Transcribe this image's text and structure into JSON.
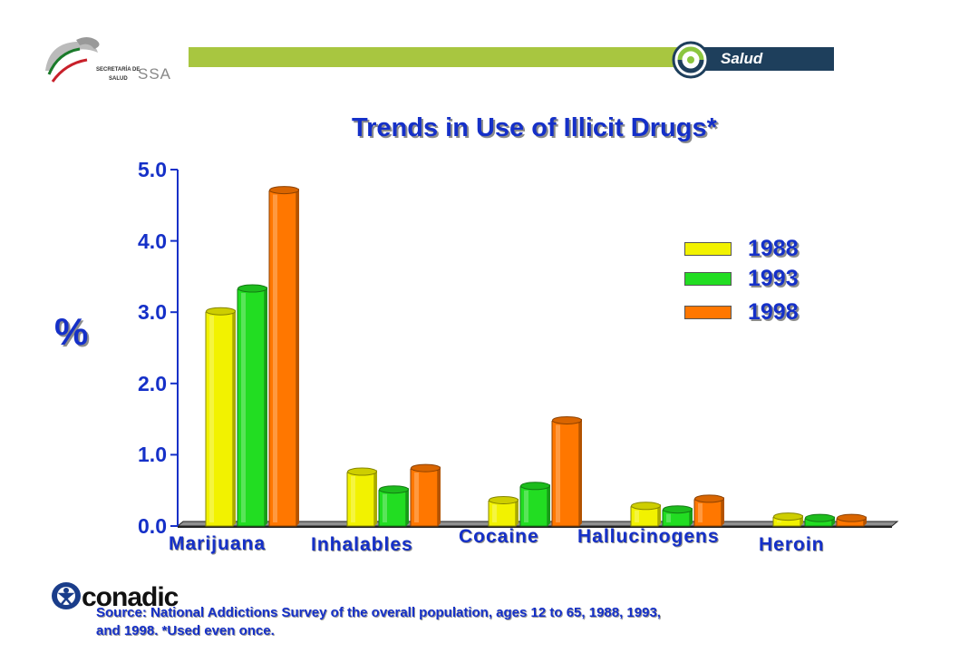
{
  "header": {
    "brand_right": "Salud",
    "brand_left_line1": "SECRETARÍA DE",
    "brand_left_line2": "SALUD",
    "brand_left_abbrev": "SSA"
  },
  "chart_data": {
    "type": "bar",
    "title": "Trends in Use of Illicit Drugs*",
    "ylabel": "%",
    "xlabel": "",
    "ylim": [
      0,
      5.0
    ],
    "yticks": [
      "0.0",
      "1.0",
      "2.0",
      "3.0",
      "4.0",
      "5.0"
    ],
    "categories": [
      "Marijuana",
      "Inhalables",
      "Cocaine",
      "Hallucinogens",
      "Heroin"
    ],
    "series": [
      {
        "name": "1988",
        "color": "#f2f200",
        "values": [
          3.0,
          0.75,
          0.35,
          0.27,
          0.12
        ]
      },
      {
        "name": "1993",
        "color": "#22dd22",
        "values": [
          3.32,
          0.5,
          0.55,
          0.22,
          0.1
        ]
      },
      {
        "name": "1998",
        "color": "#ff7700",
        "values": [
          4.7,
          0.8,
          1.47,
          0.37,
          0.1
        ]
      }
    ],
    "legend_position": "right",
    "grid": false
  },
  "footer": {
    "org": "conadic",
    "source": "Source: National Addictions Survey of the overall population, ages 12 to 65, 1988, 1993, and 1998.  *Used even once."
  }
}
